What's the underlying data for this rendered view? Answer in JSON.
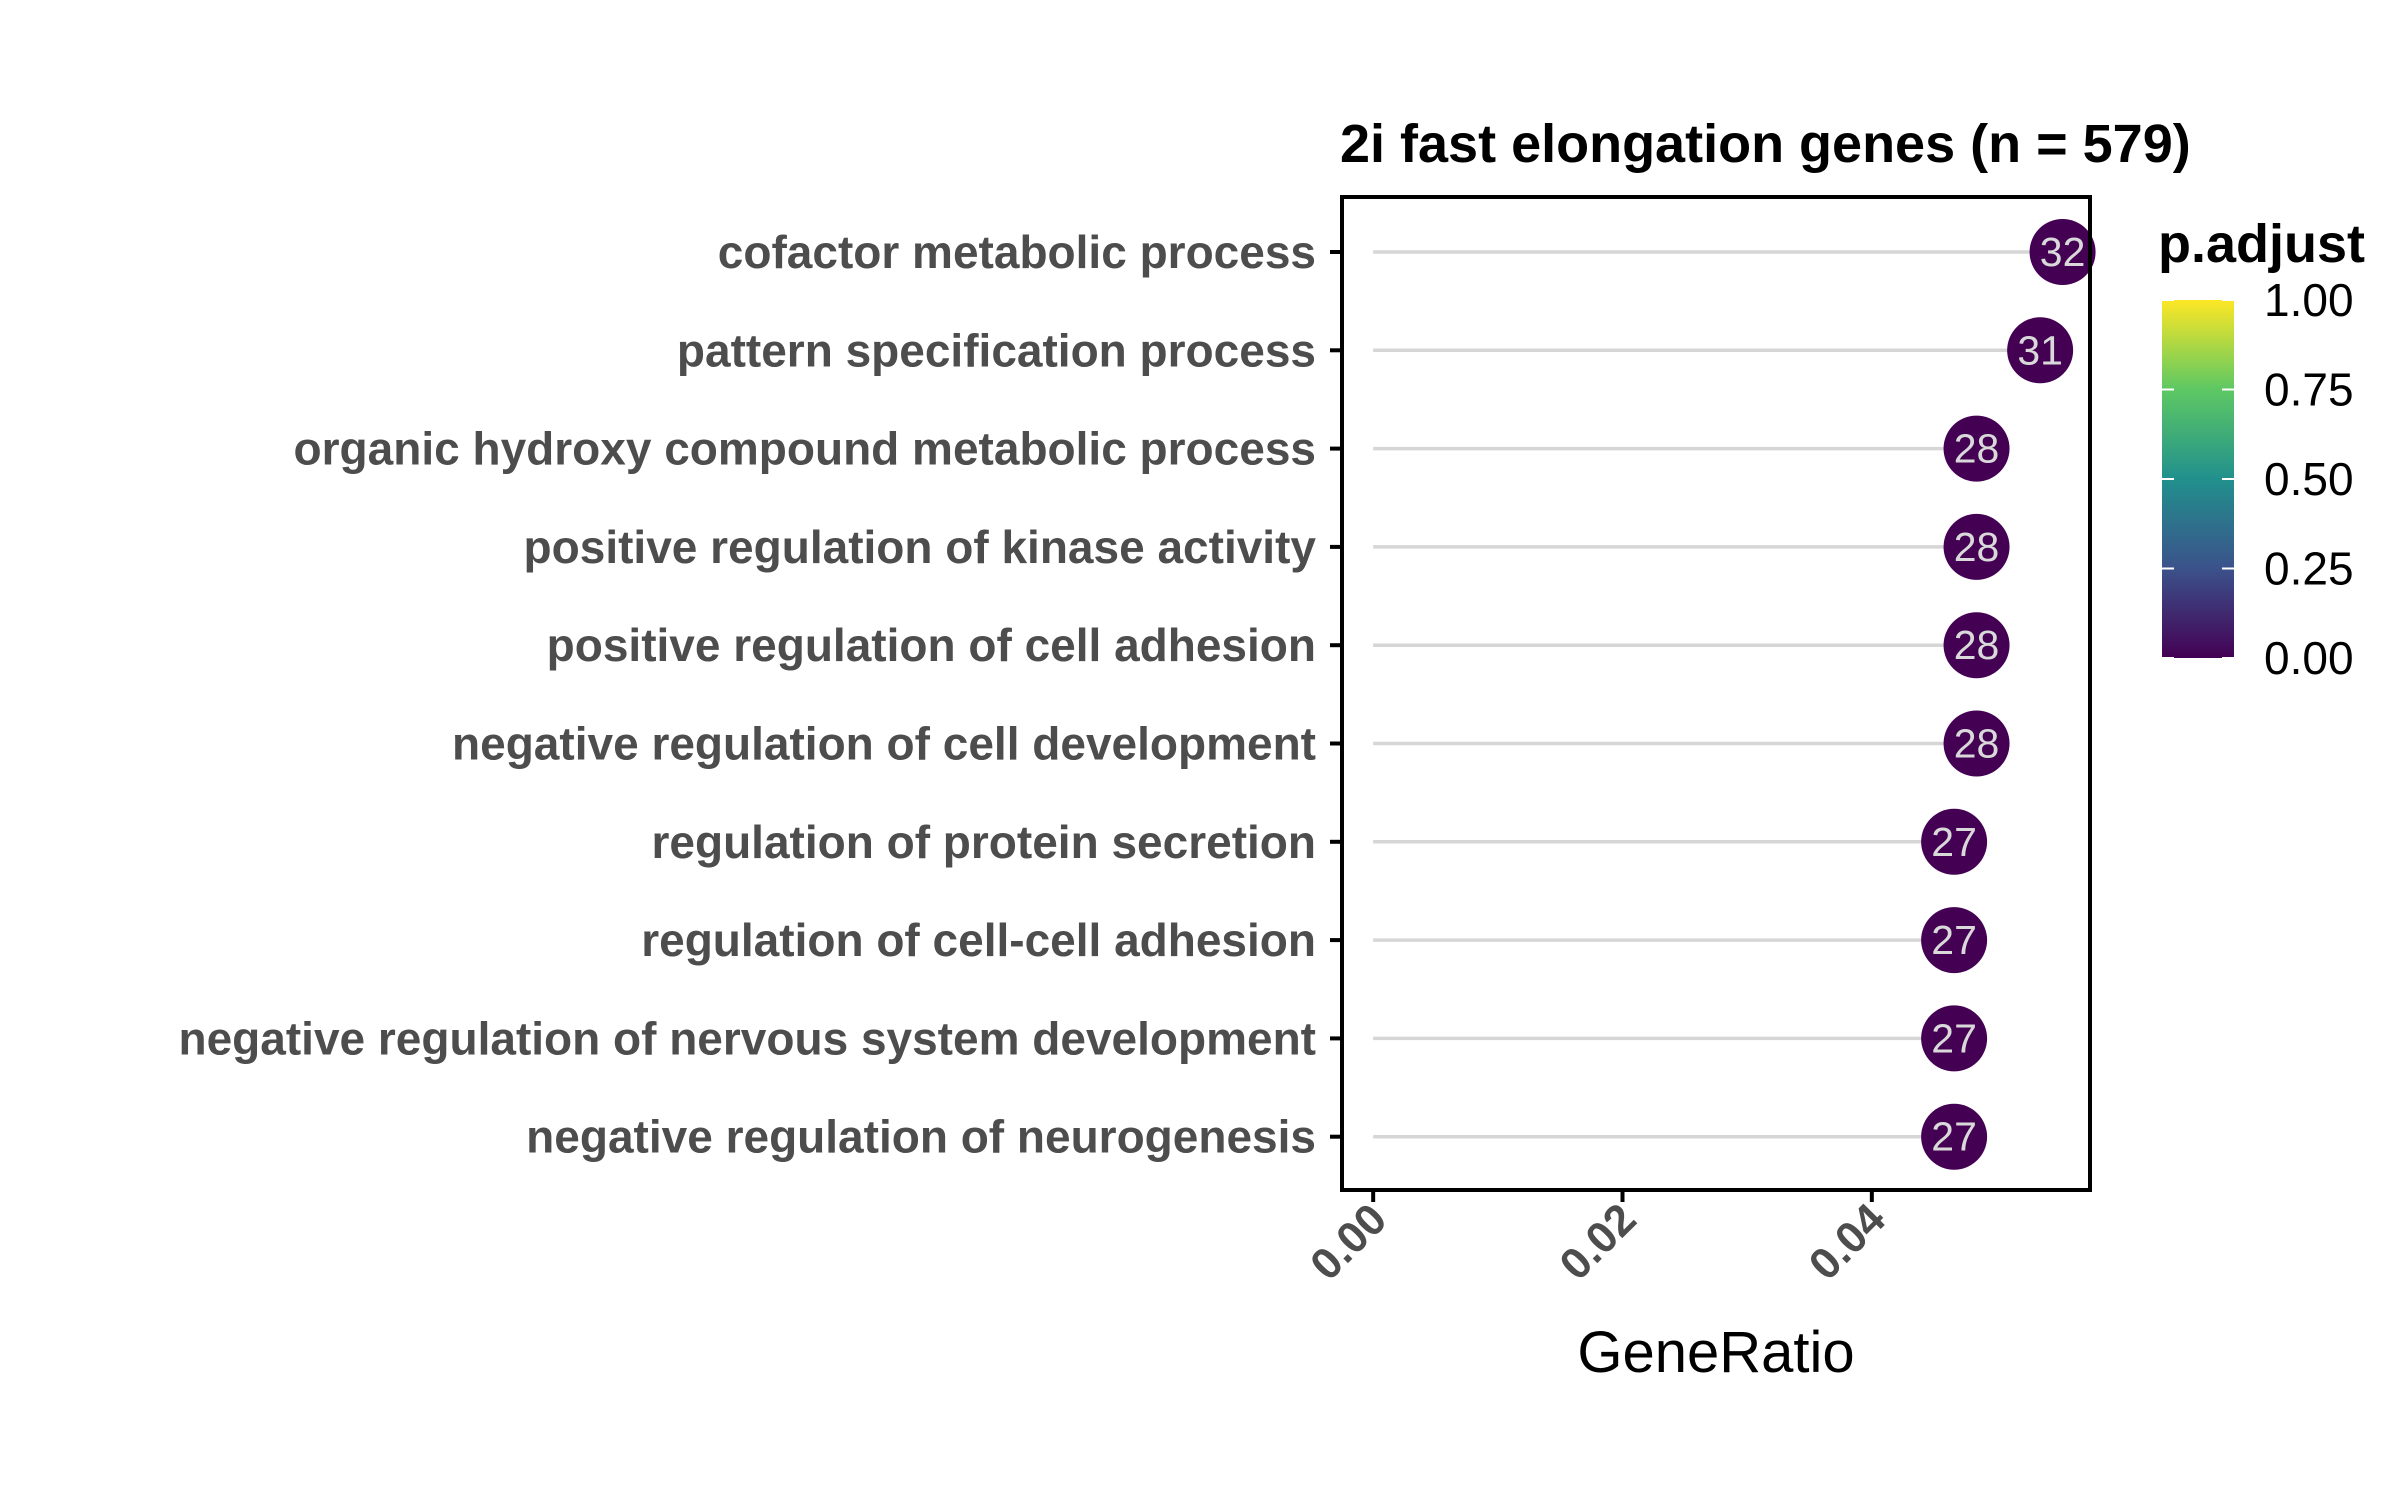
{
  "chart_data": {
    "type": "scatter",
    "subtype": "lollipop",
    "title": "2i fast elongation genes (n = 579)",
    "xlabel": "GeneRatio",
    "ylabel": "",
    "xlim": [
      -0.0025,
      0.0575
    ],
    "xticks": [
      0.0,
      0.02,
      0.04
    ],
    "xtick_labels": [
      "0.00",
      "0.02",
      "0.04"
    ],
    "grid": false,
    "categories": [
      "cofactor metabolic process",
      "pattern specification process",
      "organic hydroxy compound metabolic process",
      "positive regulation of kinase activity",
      "positive regulation of cell adhesion",
      "negative regulation of cell development",
      "regulation of protein secretion",
      "regulation of cell-cell adhesion",
      "negative regulation of nervous system development",
      "negative regulation of neurogenesis"
    ],
    "gene_ratio": [
      0.0553,
      0.0535,
      0.0484,
      0.0484,
      0.0484,
      0.0484,
      0.0466,
      0.0466,
      0.0466,
      0.0466
    ],
    "count": [
      32,
      31,
      28,
      28,
      28,
      28,
      27,
      27,
      27,
      27
    ],
    "p_adjust": [
      0.0,
      0.0,
      0.0,
      0.0,
      0.0,
      0.0,
      0.0,
      0.0,
      0.0,
      0.0
    ],
    "legend": {
      "title": "p.adjust",
      "position": "right",
      "ticks": [
        1.0,
        0.75,
        0.5,
        0.25,
        0.0
      ],
      "tick_labels": [
        "1.00",
        "0.75",
        "0.50",
        "0.25",
        "0.00"
      ],
      "colormap": [
        "#440154",
        "#3b528b",
        "#21908d",
        "#5dc863",
        "#fde725"
      ]
    },
    "colors": {
      "stem": "#d6d6d6",
      "point_low": "#440154",
      "count_text": "#d9d9d9",
      "axis_text": "#4d4d4d"
    }
  }
}
